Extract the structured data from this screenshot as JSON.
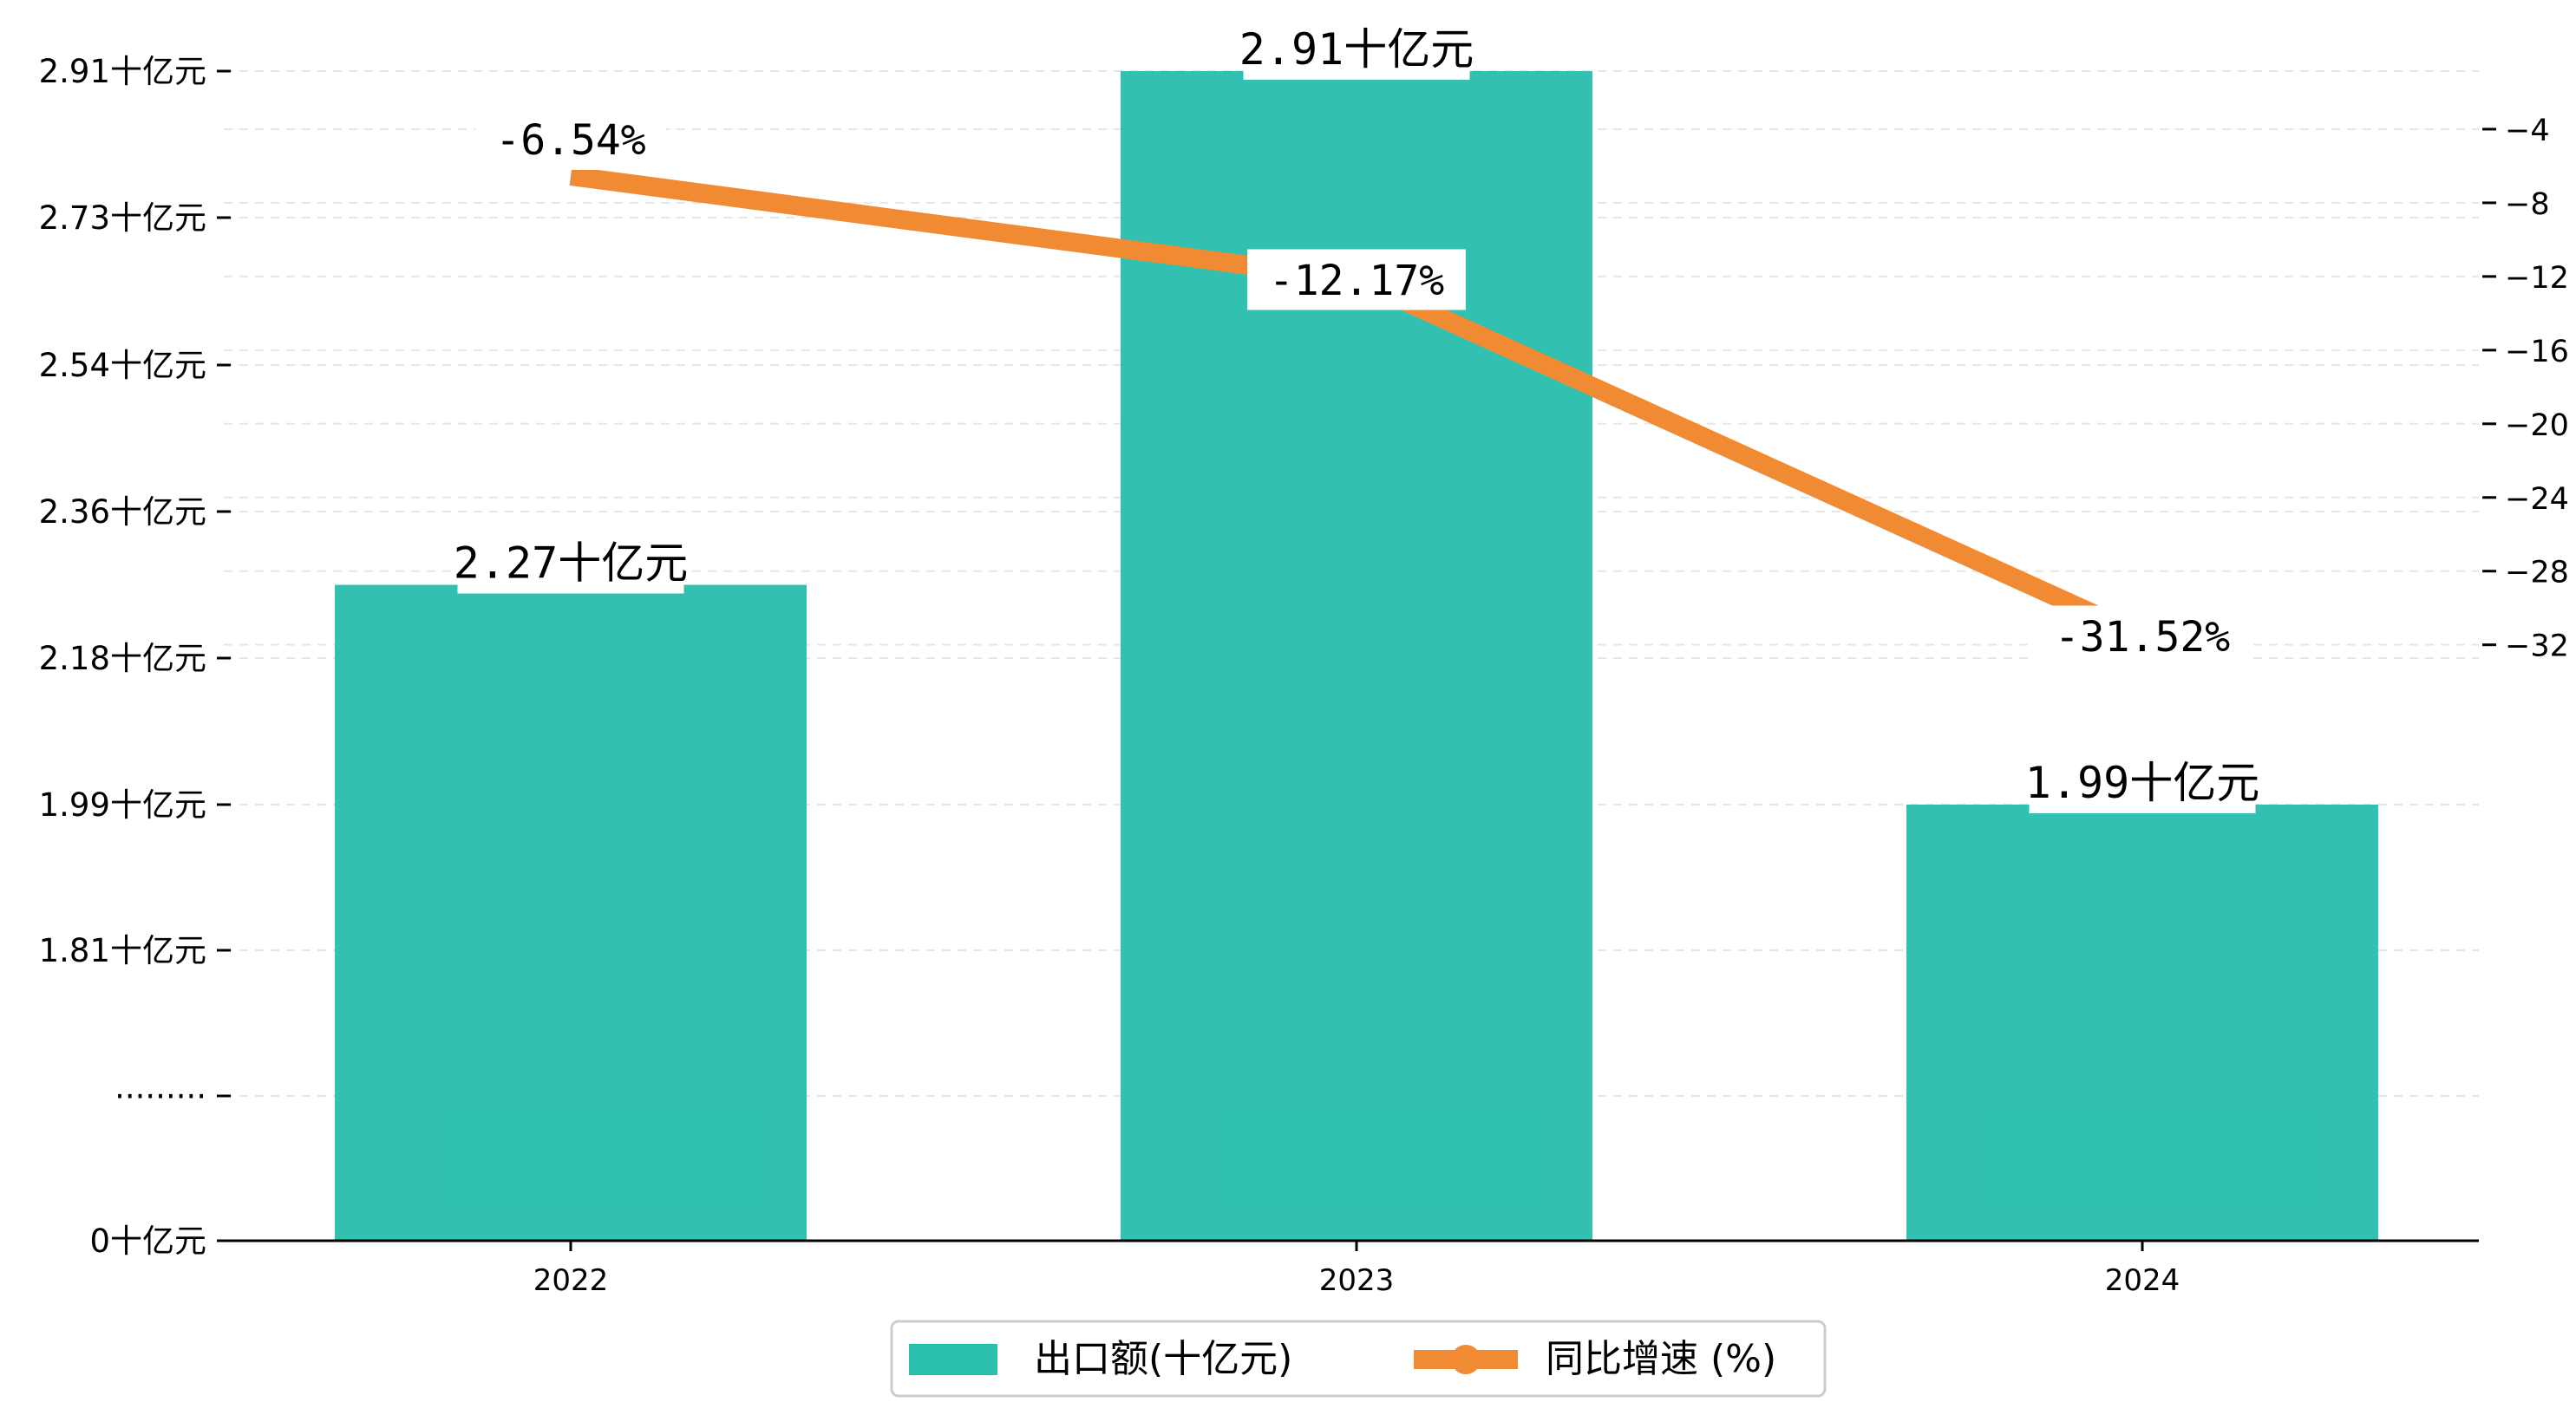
{
  "chart_data": {
    "type": "bar",
    "categories": [
      "2022",
      "2023",
      "2024"
    ],
    "series": [
      {
        "name": "出口额(十亿元)",
        "type": "bar",
        "axis": "left",
        "values": [
          2.27,
          2.91,
          1.99
        ],
        "labels": [
          "2.27十亿元",
          "2.91十亿元",
          "1.99十亿元"
        ],
        "color": "#2bbfae"
      },
      {
        "name": "同比增速 (%)",
        "type": "line",
        "axis": "right",
        "values": [
          -6.54,
          -12.17,
          -31.52
        ],
        "labels": [
          "-6.54%",
          "-12.17%",
          "-31.52%"
        ],
        "color": "#f08a33"
      }
    ],
    "left_axis": {
      "ticks": [
        {
          "value": 0,
          "label": "0十亿元"
        },
        {
          "value": 0.78,
          "label": "·········"
        },
        {
          "value": 1.81,
          "label": "1.81十亿元"
        },
        {
          "value": 1.99,
          "label": "1.99十亿元"
        },
        {
          "value": 2.18,
          "label": "2.18十亿元"
        },
        {
          "value": 2.36,
          "label": "2.36十亿元"
        },
        {
          "value": 2.54,
          "label": "2.54十亿元"
        },
        {
          "value": 2.73,
          "label": "2.73十亿元"
        },
        {
          "value": 2.91,
          "label": "2.91十亿元"
        }
      ]
    },
    "right_axis": {
      "ticks": [
        -4,
        -8,
        -12,
        -16,
        -20,
        -24,
        -28,
        -32
      ],
      "range": [
        -35.5,
        -3.1
      ]
    },
    "grid": true,
    "legend_position": "bottom-center"
  }
}
